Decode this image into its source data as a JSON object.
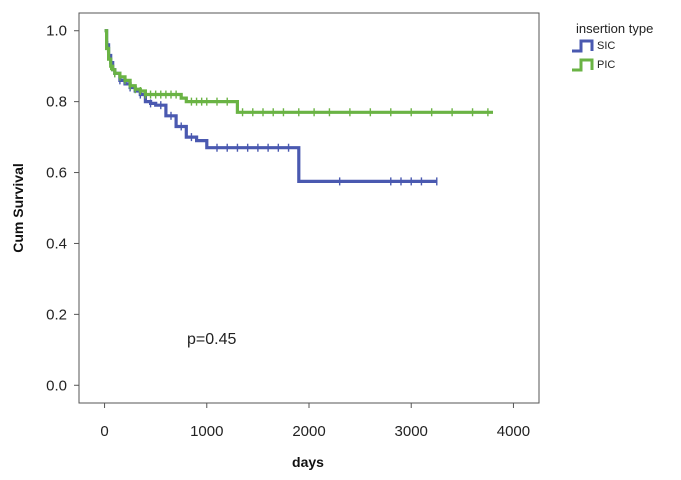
{
  "chart_data": {
    "type": "line",
    "title": "",
    "xlabel": "days",
    "ylabel": "Cum Survival",
    "xlim": [
      -250,
      4250
    ],
    "ylim": [
      -0.05,
      1.05
    ],
    "x_ticks": [
      0,
      1000,
      2000,
      3000,
      4000
    ],
    "y_ticks": [
      0.0,
      0.2,
      0.4,
      0.6,
      0.8,
      1.0
    ],
    "x_tick_labels": [
      "0",
      "1000",
      "2000",
      "3000",
      "4000"
    ],
    "y_tick_labels": [
      "0.0",
      "0.2",
      "0.4",
      "0.6",
      "0.8",
      "1.0"
    ],
    "grid": false,
    "legend": {
      "title": "insertion type",
      "position": "top-right"
    },
    "annotation": "p=0.45",
    "series": [
      {
        "name": "SIC",
        "color": "#4a59b0",
        "x": [
          0,
          20,
          40,
          60,
          80,
          100,
          150,
          200,
          250,
          300,
          350,
          400,
          450,
          500,
          600,
          700,
          800,
          900,
          1000,
          1900,
          1900,
          3250
        ],
        "y": [
          1.0,
          0.96,
          0.93,
          0.91,
          0.89,
          0.88,
          0.86,
          0.85,
          0.84,
          0.83,
          0.82,
          0.8,
          0.795,
          0.79,
          0.76,
          0.73,
          0.7,
          0.69,
          0.67,
          0.67,
          0.575,
          0.575
        ],
        "censor_x": [
          30,
          60,
          100,
          150,
          250,
          350,
          450,
          550,
          650,
          750,
          850,
          1100,
          1200,
          1300,
          1400,
          1500,
          1600,
          1700,
          1800,
          2300,
          2800,
          2900,
          3000,
          3100,
          3250
        ]
      },
      {
        "name": "PIC",
        "color": "#6ab344",
        "x": [
          0,
          20,
          40,
          60,
          80,
          100,
          150,
          200,
          250,
          300,
          350,
          400,
          700,
          750,
          800,
          1250,
          1300,
          3800
        ],
        "y": [
          1.0,
          0.95,
          0.92,
          0.9,
          0.89,
          0.88,
          0.87,
          0.86,
          0.845,
          0.835,
          0.83,
          0.82,
          0.82,
          0.81,
          0.8,
          0.8,
          0.77,
          0.77
        ],
        "censor_x": [
          30,
          60,
          100,
          150,
          200,
          250,
          300,
          350,
          400,
          450,
          500,
          550,
          600,
          650,
          700,
          850,
          900,
          950,
          1000,
          1100,
          1200,
          1350,
          1450,
          1550,
          1650,
          1750,
          1900,
          2050,
          2200,
          2400,
          2600,
          2800,
          3000,
          3200,
          3400,
          3600,
          3750
        ]
      }
    ]
  }
}
